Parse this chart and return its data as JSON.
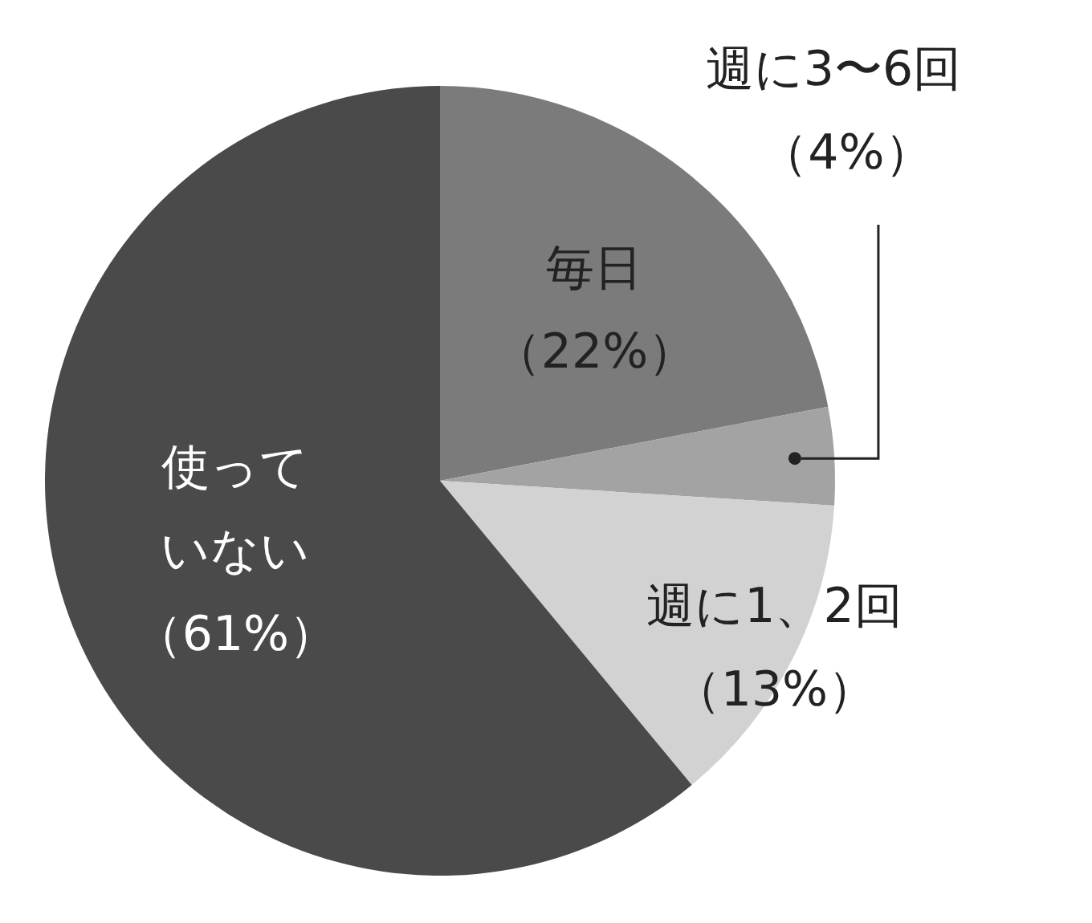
{
  "chart_data": {
    "type": "pie",
    "categories": [
      "毎日",
      "週に3〜6回",
      "週に1、2回",
      "使っていない"
    ],
    "values": [
      22,
      4,
      13,
      61
    ],
    "colors": [
      "#7b7b7b",
      "#a3a3a3",
      "#d2d2d2",
      "#4a4a4a"
    ],
    "value_labels": [
      "（22%）",
      "（4%）",
      "（13%）",
      "（61%）"
    ],
    "legend": false
  }
}
